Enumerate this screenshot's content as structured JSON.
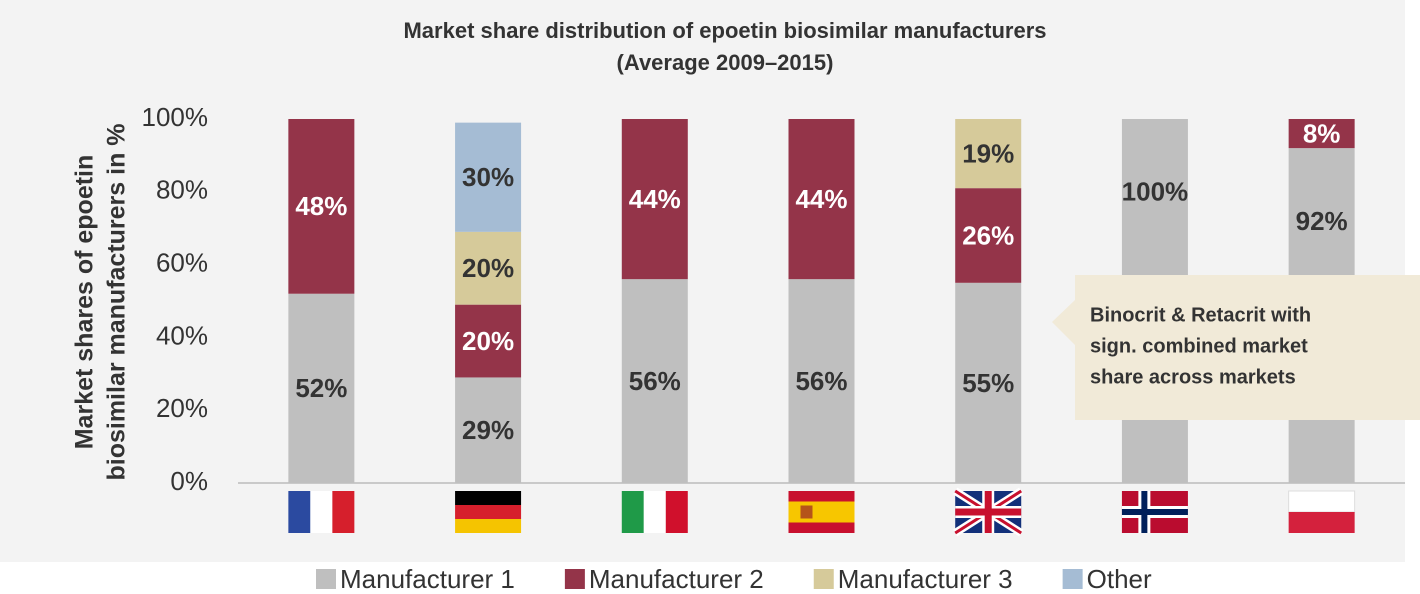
{
  "chart_data": {
    "type": "stacked_bar",
    "title": "Market share distribution of epoetin biosimilar manufacturers",
    "subtitle": "(Average 2009–2015)",
    "y_label": [
      "Market shares of epoetin",
      "biosimilar manufacturers in %"
    ],
    "categories": [
      null,
      null,
      null,
      null,
      null,
      null,
      null
    ],
    "series": [
      {
        "name": "Manufacturer 1",
        "color": "#bfbfbf",
        "label_color": "#333333",
        "values": [
          52,
          29,
          56,
          56,
          55,
          100,
          92
        ],
        "value_labels": [
          "52%",
          "29%",
          "56%",
          "56%",
          "55%",
          "100%",
          "92%"
        ]
      },
      {
        "name": "Manufacturer 2",
        "color": "#943449",
        "label_color": "#ffffff",
        "values": [
          48,
          20,
          44,
          44,
          26,
          null,
          8
        ],
        "value_labels": [
          "48%",
          "20%",
          "44%",
          "44%",
          "26%",
          null,
          "8%"
        ]
      },
      {
        "name": "Manufacturer 3",
        "color": "#d6ca9a",
        "label_color": "#333333",
        "values": [
          null,
          20,
          null,
          null,
          19,
          null,
          null
        ],
        "value_labels": [
          null,
          "20%",
          null,
          null,
          "19%",
          null,
          null
        ]
      },
      {
        "name": "Other",
        "color": "#a5bcd4",
        "label_color": "#333333",
        "values": [
          null,
          30,
          null,
          null,
          null,
          null,
          null
        ],
        "value_labels": [
          null,
          "30%",
          null,
          null,
          null,
          null,
          null
        ]
      }
    ],
    "ylim": [
      0,
      100
    ],
    "yticks": [
      {
        "value": 0,
        "label": "0%"
      },
      {
        "value": 20,
        "label": "20%"
      },
      {
        "value": 40,
        "label": "40%"
      },
      {
        "value": 60,
        "label": "60%"
      },
      {
        "value": 80,
        "label": "80%"
      },
      {
        "value": 100,
        "label": "100%"
      }
    ],
    "grid": false,
    "legend": "bottom",
    "annotation": [
      "Binocrit & Retacrit with",
      "sign. combined market",
      "share across markets"
    ]
  }
}
